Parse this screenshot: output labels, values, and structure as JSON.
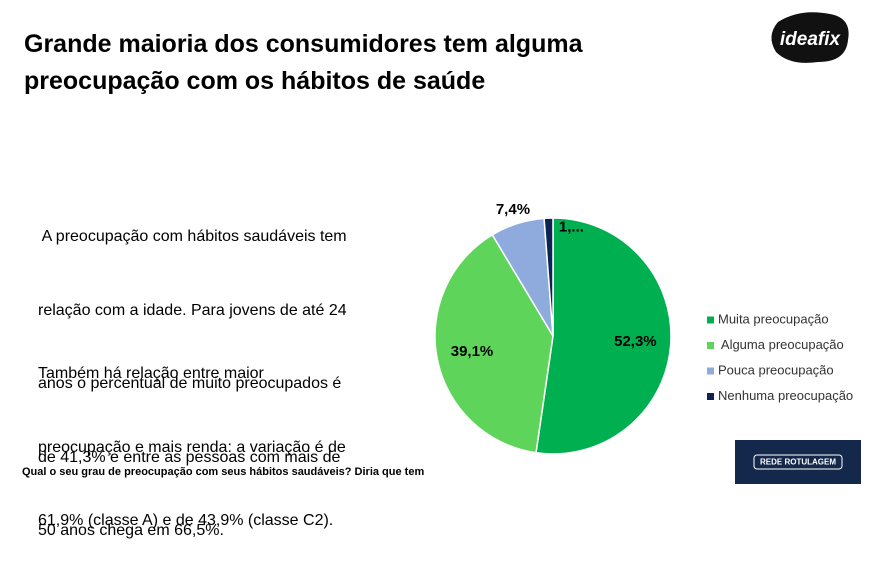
{
  "title_lines": [
    "Grande maioria dos consumidores tem alguma",
    "preocupação com os hábitos de saúde"
  ],
  "logo": "ideafix",
  "paragraphs": [
    [
      " A preocupação com hábitos saudáveis tem",
      "relação com a idade. Para jovens de até 24",
      "anos o percentual de muito preocupados é",
      "de 41,3% e entre as pessoas com mais de",
      "50 anos chega em 66,5%."
    ],
    [
      "Também há relação entre maior",
      "preocupação e mais renda: a variação é de",
      "61,9% (classe A) e de 43,9% (classe C2)."
    ]
  ],
  "footnote": "Qual o seu grau de preocupação com seus hábitos saudáveis? Diria que tem",
  "badge": "REDE ROTULAGEM",
  "chart_data": {
    "type": "pie",
    "categories": [
      "Muita preocupação",
      " Alguma preocupação",
      "Pouca preocupação",
      "Nenhuma preocupação"
    ],
    "values": [
      52.3,
      39.1,
      7.4,
      1.2
    ],
    "value_labels": [
      "52,3%",
      "39,1%",
      "7,4%",
      "1,..."
    ],
    "colors": [
      "#00b050",
      "#5ed55a",
      "#8faadc",
      "#0d2352"
    ]
  }
}
